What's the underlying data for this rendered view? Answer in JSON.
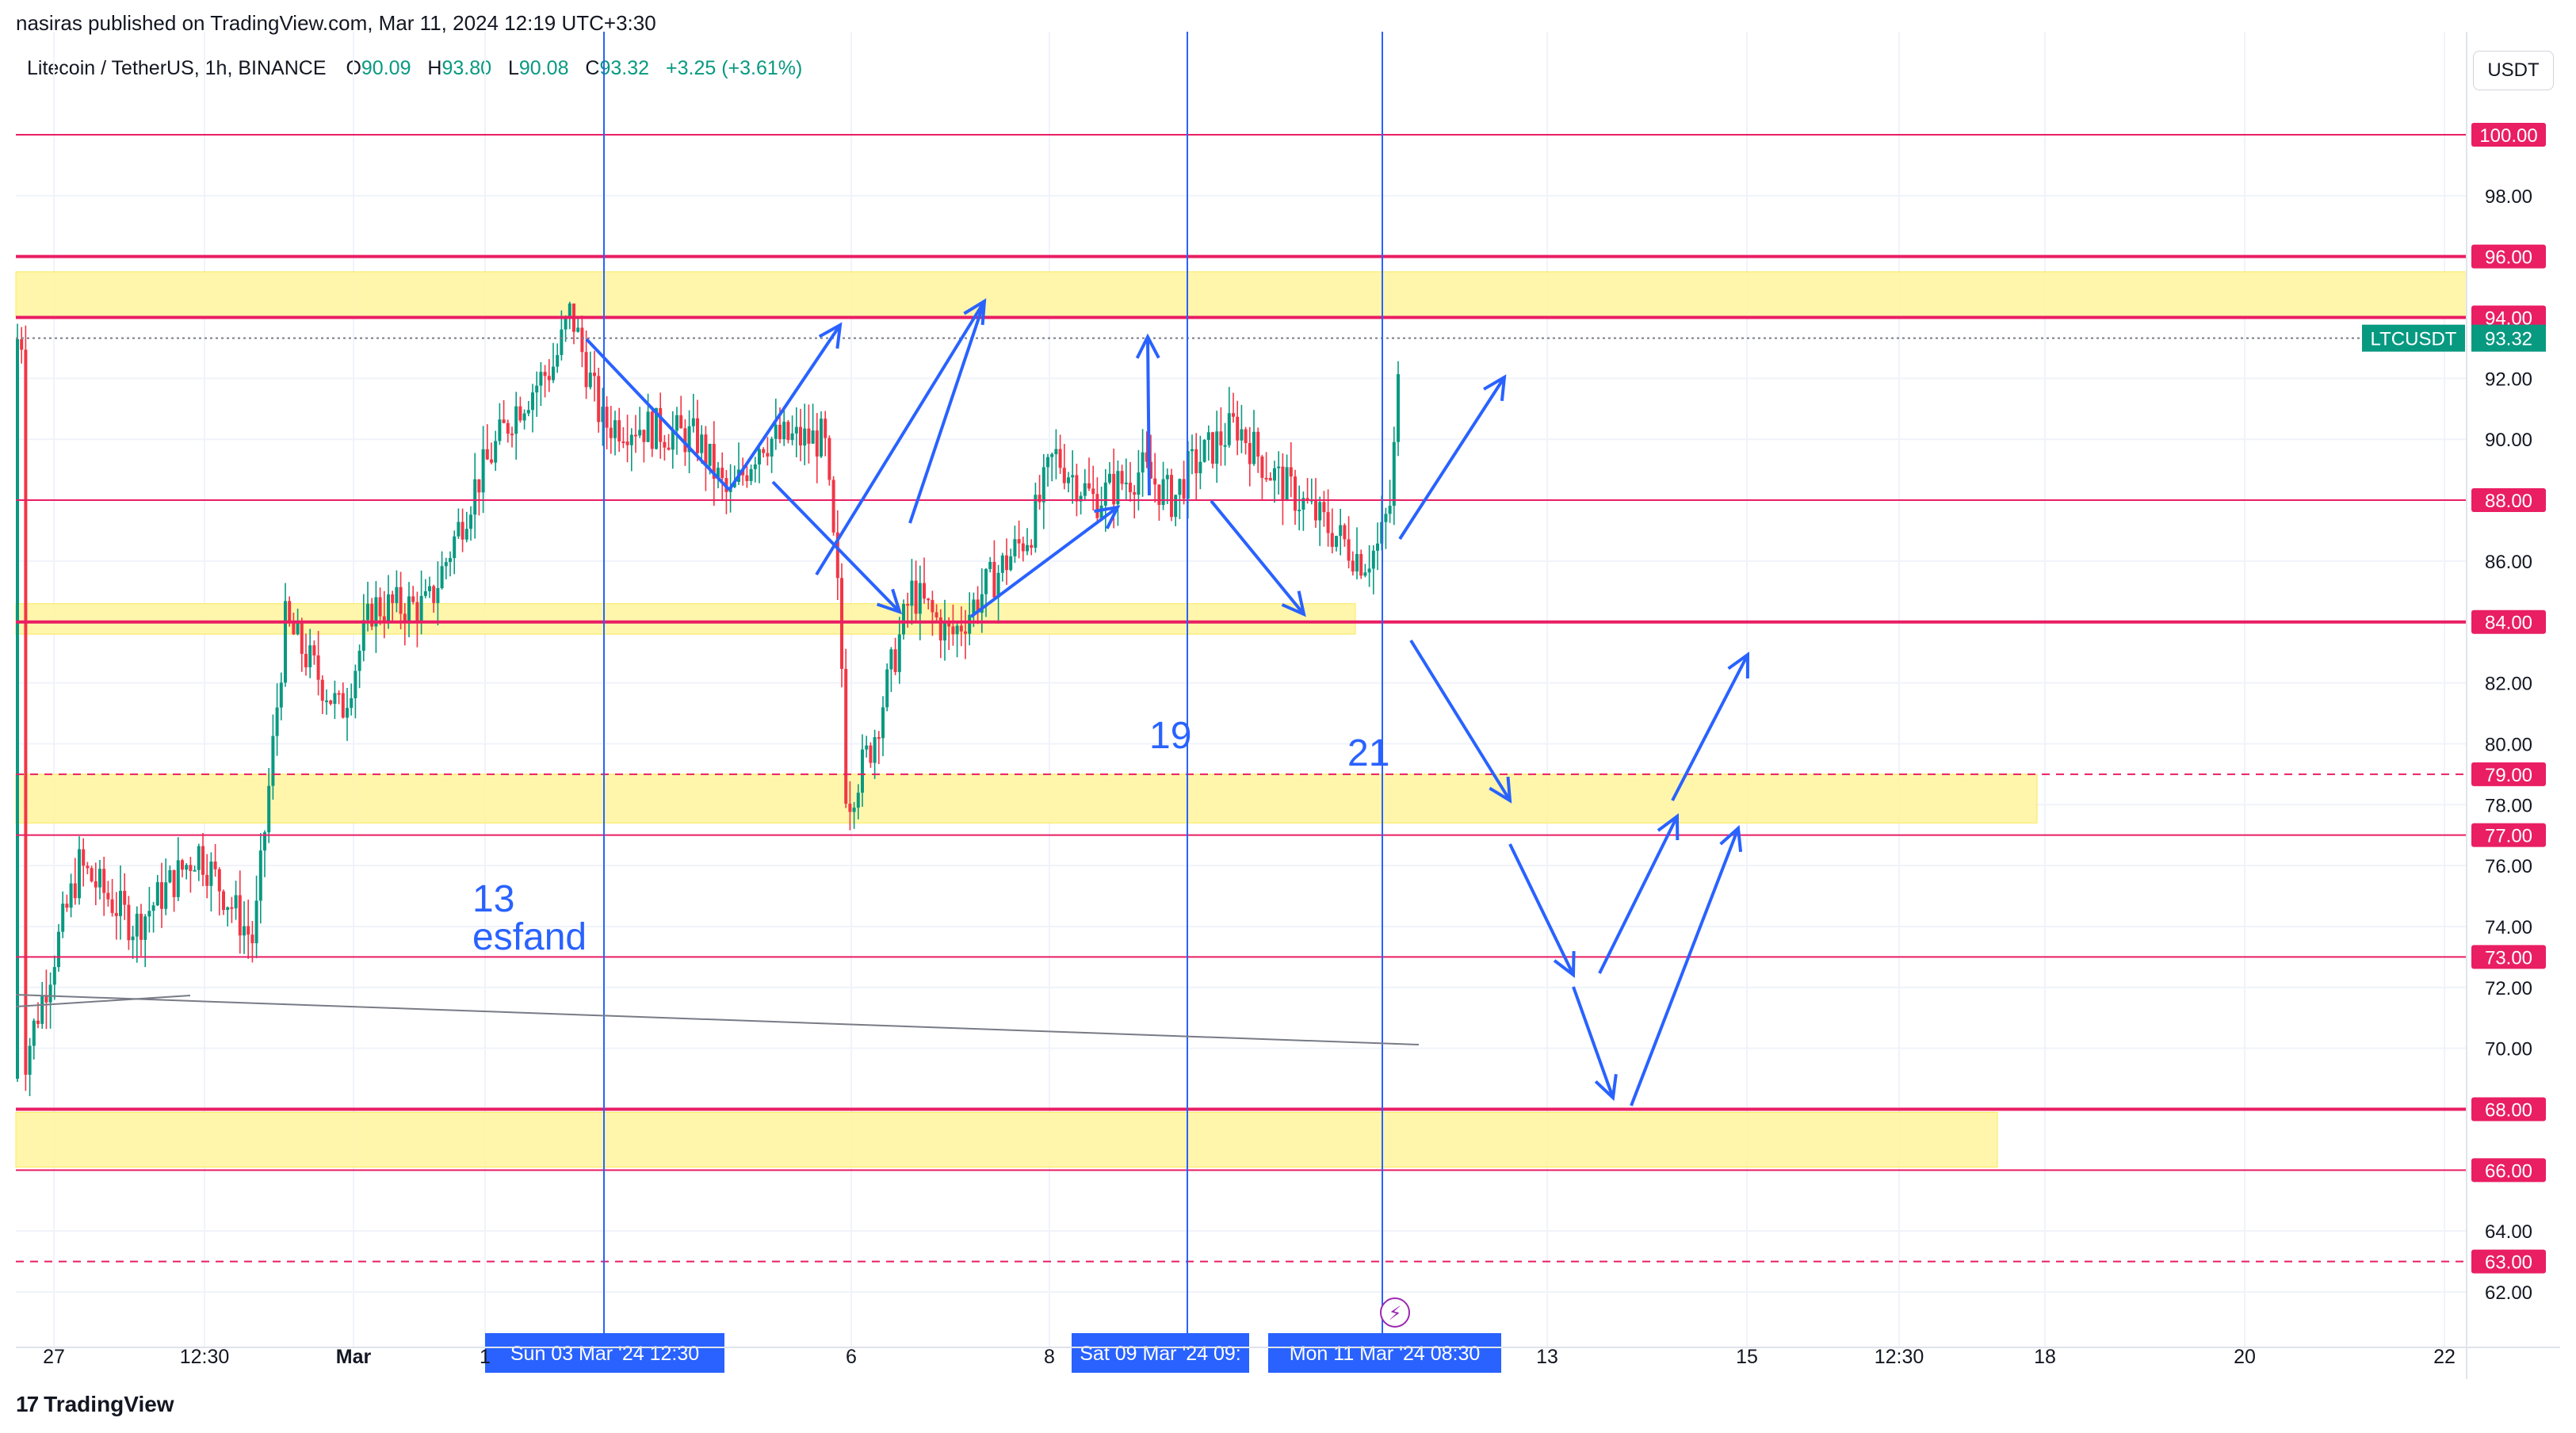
{
  "header": {
    "published": "nasiras published on TradingView.com, Mar 11, 2024 12:19 UTC+3:30",
    "symbol": "Litecoin / TetherUS, 1h, BINANCE",
    "open_label": "O",
    "open": "90.09",
    "high_label": "H",
    "high": "93.80",
    "low_label": "L",
    "low": "90.08",
    "close_label": "C",
    "close": "93.32",
    "change": "+3.25 (+3.61%)"
  },
  "toolbar": {
    "currency_button": "USDT"
  },
  "footer": {
    "brand": "TradingView",
    "logo": "17"
  },
  "colors": {
    "up": "#089981",
    "down": "#f23645",
    "level": "#e91e63",
    "zone": "#fff59d",
    "annotation": "#2962ff",
    "price_tag": "#089981"
  },
  "chart_data": {
    "type": "line",
    "title": "Litecoin / TetherUS, 1h, BINANCE",
    "ylim": [
      61,
      102.5
    ],
    "x_ticks": [
      "27",
      "12:30",
      "Mar",
      "1",
      "6",
      "8",
      "13",
      "15",
      "12:30",
      "18",
      "20",
      "22"
    ],
    "y_ticks": [
      "62.00",
      "64.00",
      "66.00",
      "68.00",
      "70.00",
      "72.00",
      "74.00",
      "76.00",
      "78.00",
      "80.00",
      "82.00",
      "84.00",
      "86.00",
      "88.00",
      "90.00",
      "92.00",
      "94.00",
      "96.00",
      "98.00",
      "100.00"
    ],
    "series": [
      {
        "x": [
          "Feb 26",
          "Feb 27",
          "Feb 28",
          "Feb 29",
          "Mar 01",
          "Mar 02",
          "Mar 03",
          "Mar 04",
          "Mar 05",
          "Mar 06",
          "Mar 07",
          "Mar 08",
          "Mar 09",
          "Mar 10",
          "Mar 11"
        ],
        "values": [
          69.5,
          76.0,
          74.0,
          82.5,
          85.0,
          91.5,
          93.5,
          90.0,
          88.0,
          79.0,
          85.0,
          89.0,
          88.5,
          88.5,
          93.32
        ]
      }
    ],
    "level_lines": [
      {
        "price": 100.0,
        "label": "100.00",
        "style": "solid"
      },
      {
        "price": 96.0,
        "label": "96.00",
        "style": "solid"
      },
      {
        "price": 94.0,
        "label": "94.00",
        "style": "solid"
      },
      {
        "price": 88.0,
        "label": "88.00",
        "style": "solid"
      },
      {
        "price": 84.0,
        "label": "84.00",
        "style": "solid"
      },
      {
        "price": 79.0,
        "label": "79.00",
        "style": "dashed"
      },
      {
        "price": 77.0,
        "label": "77.00",
        "style": "solid"
      },
      {
        "price": 73.0,
        "label": "73.00",
        "style": "solid"
      },
      {
        "price": 68.0,
        "label": "68.00",
        "style": "solid"
      },
      {
        "price": 66.0,
        "label": "66.00",
        "style": "solid"
      },
      {
        "price": 63.0,
        "label": "63.00",
        "style": "dashed"
      }
    ],
    "current_price": {
      "symbol": "LTCUSDT",
      "value": "93.32",
      "price": 93.32
    },
    "zones": [
      {
        "low": 94.0,
        "high": 95.5
      },
      {
        "low": 83.6,
        "high": 84.6
      },
      {
        "low": 77.4,
        "high": 79.0
      },
      {
        "low": 66.1,
        "high": 67.9
      }
    ],
    "annotations": [
      "13",
      "esfand",
      "19",
      "21"
    ],
    "date_labels": [
      "Sun 03 Mar '24   12:30",
      "Sat 09 Mar '24   09:",
      "Mon 11 Mar '24   08:30"
    ],
    "currency": "USDT"
  }
}
